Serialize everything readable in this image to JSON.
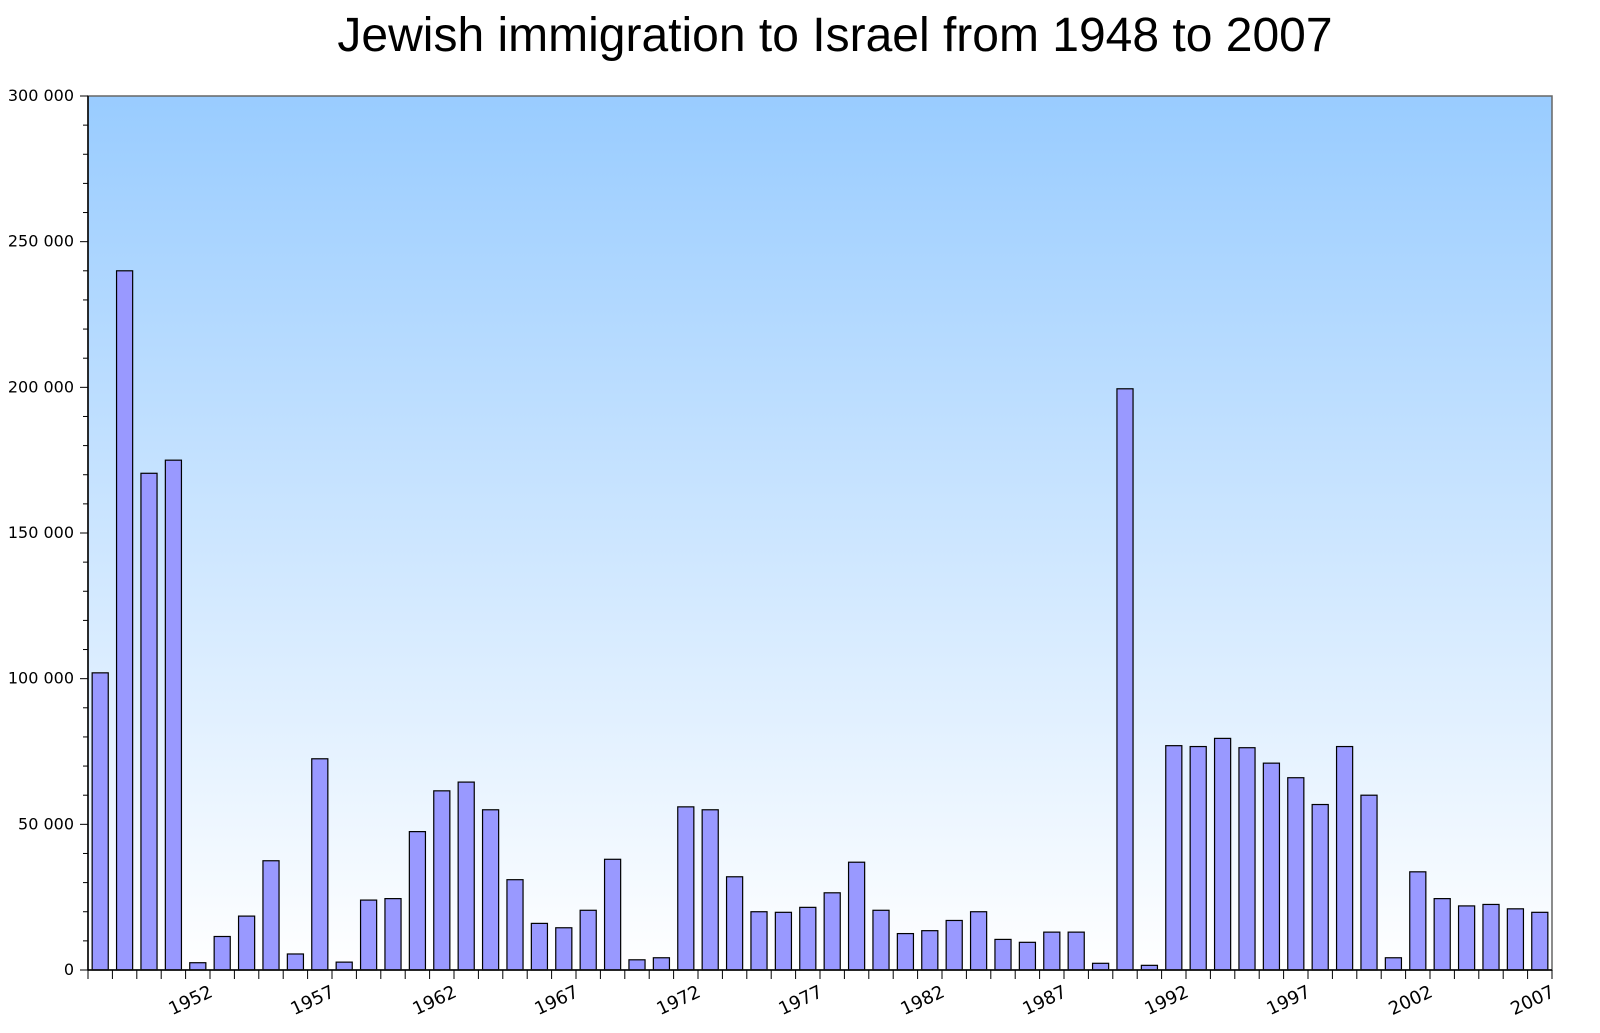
{
  "chart_data": {
    "type": "bar",
    "title": "Jewish immigration to Israel from 1948 to 2007",
    "xlabel": "",
    "ylabel": "",
    "ylim": [
      0,
      300000
    ],
    "y_ticks": [
      0,
      50000,
      100000,
      150000,
      200000,
      250000,
      300000
    ],
    "y_tick_labels": [
      "0",
      "50 000",
      "100 000",
      "150 000",
      "200 000",
      "250 000",
      "300 000"
    ],
    "x_tick_labels": [
      "1952",
      "1957",
      "1962",
      "1967",
      "1972",
      "1977",
      "1982",
      "1987",
      "1992",
      "1997",
      "2002",
      "2007"
    ],
    "grid": false,
    "legend": "none",
    "colors": {
      "bar_fill": "#9999ff",
      "bar_stroke": "#000000",
      "bg_top": "#99ccff",
      "bg_bottom": "#ffffff",
      "frame": "#666666"
    },
    "categories": [
      "1948",
      "1949",
      "1950",
      "1951",
      "1952",
      "1953",
      "1954",
      "1955",
      "1956",
      "1957",
      "1958",
      "1959",
      "1960",
      "1961",
      "1962",
      "1963",
      "1964",
      "1965",
      "1966",
      "1967",
      "1968",
      "1969",
      "1970",
      "1971",
      "1972",
      "1973",
      "1974",
      "1975",
      "1976",
      "1977",
      "1978",
      "1979",
      "1980",
      "1981",
      "1982",
      "1983",
      "1984",
      "1985",
      "1986",
      "1987",
      "1988",
      "1989",
      "1990",
      "1991",
      "1992",
      "1993",
      "1994",
      "1995",
      "1996",
      "1997",
      "1998",
      "1999",
      "2000",
      "2001",
      "2002",
      "2003",
      "2004",
      "2005",
      "2006",
      "2007"
    ],
    "values": [
      102000,
      240000,
      170500,
      175000,
      2500,
      11500,
      18500,
      37500,
      5500,
      72500,
      2700,
      24000,
      24500,
      47500,
      61500,
      64500,
      55000,
      31000,
      16000,
      14500,
      20500,
      38000,
      3500,
      4200,
      56000,
      55000,
      32000,
      20000,
      19800,
      21500,
      26500,
      37000,
      20500,
      12500,
      13500,
      17000,
      20000,
      10500,
      9500,
      13000,
      13000,
      2300,
      199500,
      1600,
      77000,
      76700,
      79500,
      76300,
      71000,
      66000,
      56800,
      76700,
      60000,
      4200,
      33700,
      24500,
      22000,
      22500,
      21000,
      19800
    ]
  }
}
